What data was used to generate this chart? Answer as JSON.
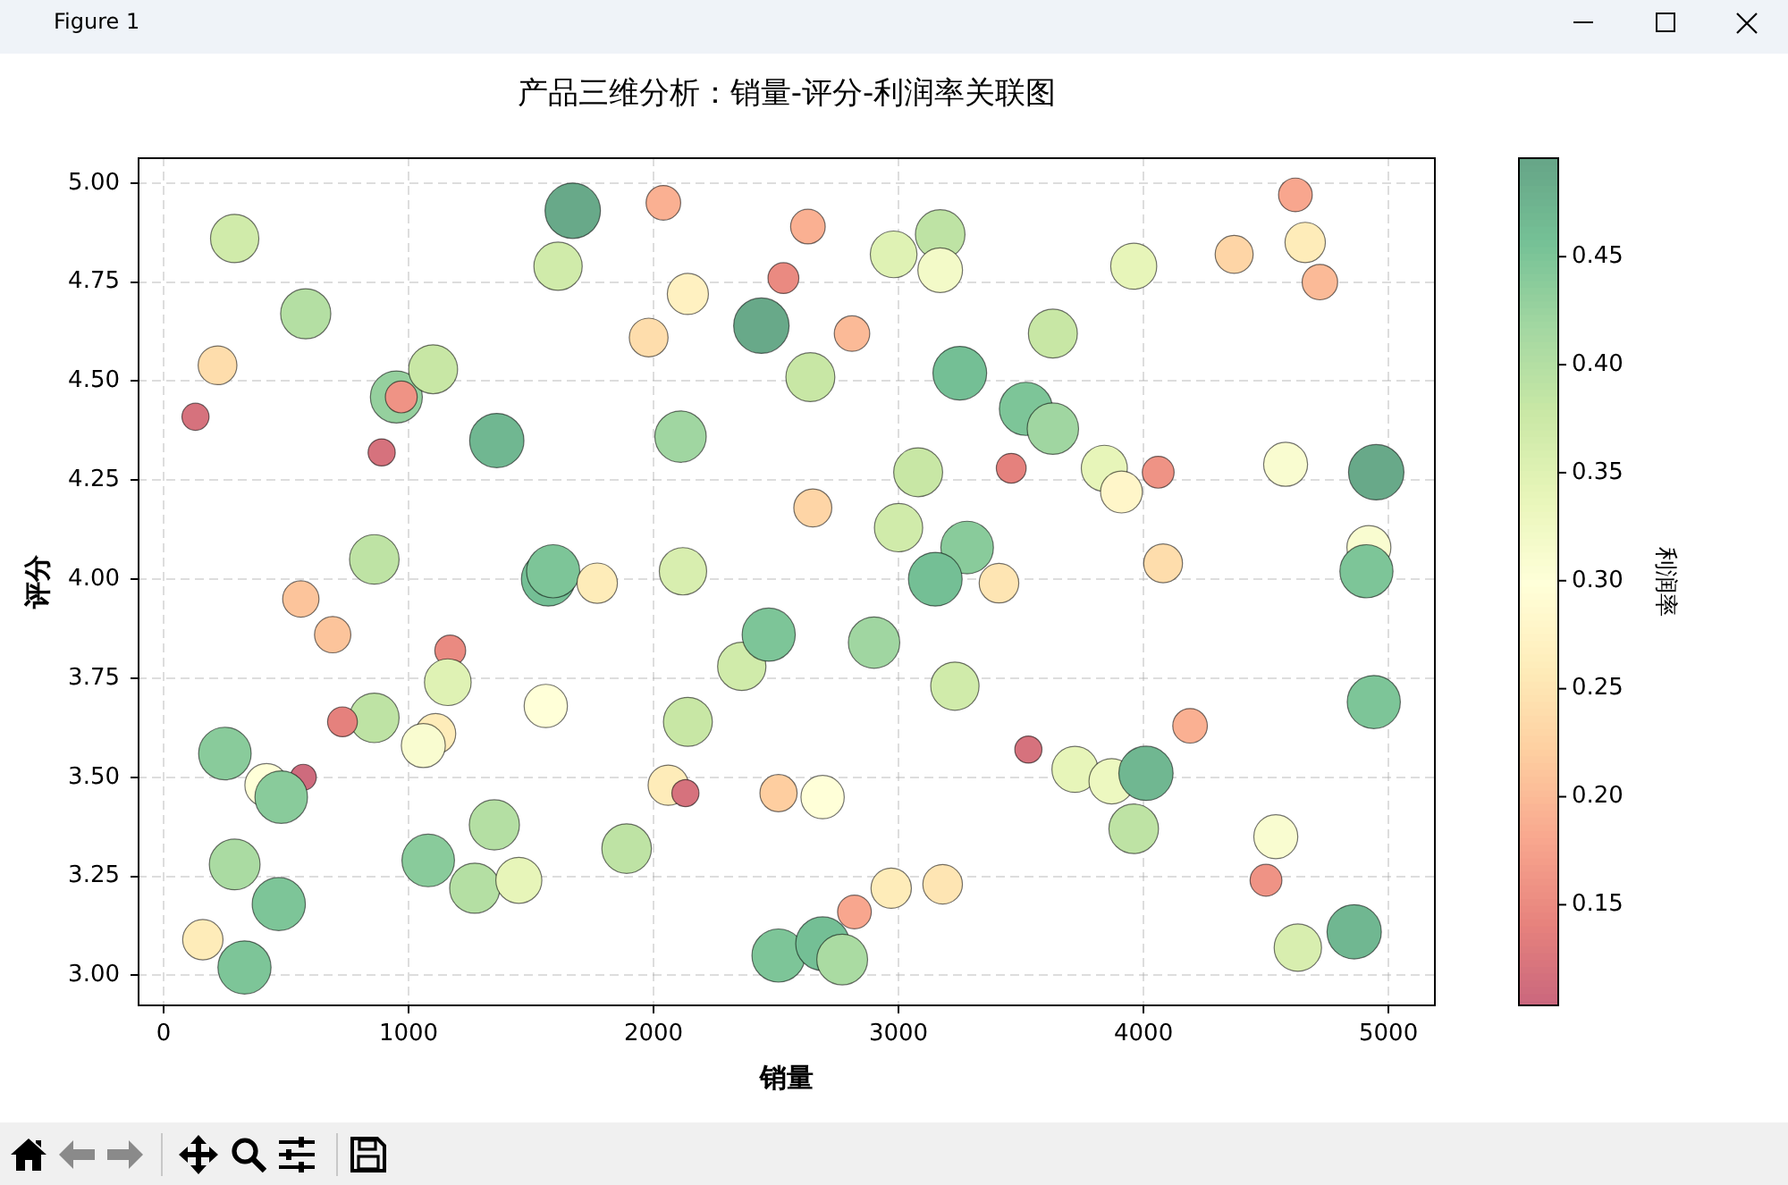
{
  "chart_data": {
    "type": "bubble",
    "title": "产品三维分析：销量-评分-利润率关联图",
    "xlabel": "销量",
    "ylabel": "评分",
    "clabel": "利润率",
    "annotations": [
      "Figure 1"
    ],
    "x": [
      290,
      580,
      220,
      130,
      950,
      970,
      1100,
      890,
      1360,
      1670,
      1610,
      2040,
      2140,
      1980,
      2440,
      2530,
      2110,
      860,
      1570,
      1590,
      1770,
      2120,
      560,
      2640,
      2630,
      2810,
      2980,
      3170,
      3170,
      3250,
      3630,
      3520,
      3630,
      3960,
      4370,
      4620,
      4660,
      4720,
      3080,
      3460,
      3840,
      3910,
      4060,
      4580,
      4950,
      2650,
      3000,
      3280,
      3150,
      3410,
      4080,
      4920,
      4910,
      690,
      1170,
      1160,
      1560,
      860,
      730,
      1110,
      1060,
      250,
      420,
      570,
      480,
      290,
      470,
      160,
      330,
      1350,
      1080,
      1270,
      1450,
      1890,
      2140,
      2060,
      2130,
      2360,
      2470,
      2510,
      2510,
      2900,
      3230,
      4940,
      4190,
      3530,
      3720,
      3870,
      4010,
      3960,
      2690,
      4540,
      4500,
      2970,
      3180,
      2820,
      2690,
      2770,
      4630,
      4860
    ],
    "values": [
      4.86,
      4.67,
      4.54,
      4.41,
      4.46,
      4.46,
      4.53,
      4.32,
      4.35,
      4.93,
      4.79,
      4.95,
      4.72,
      4.61,
      4.64,
      4.76,
      4.36,
      4.05,
      4.0,
      4.02,
      3.99,
      4.02,
      3.95,
      4.51,
      4.89,
      4.62,
      4.82,
      4.87,
      4.78,
      4.52,
      4.62,
      4.43,
      4.38,
      4.79,
      4.82,
      4.97,
      4.85,
      4.75,
      4.27,
      4.28,
      4.28,
      4.22,
      4.27,
      4.29,
      4.27,
      4.18,
      4.13,
      4.08,
      4.0,
      3.99,
      4.04,
      4.08,
      4.02,
      3.86,
      3.82,
      3.74,
      3.68,
      3.65,
      3.64,
      3.61,
      3.58,
      3.56,
      3.48,
      3.5,
      3.45,
      3.28,
      3.18,
      3.09,
      3.02,
      3.38,
      3.29,
      3.22,
      3.24,
      3.32,
      3.64,
      3.48,
      3.46,
      3.78,
      3.86,
      3.46,
      3.05,
      3.84,
      3.73,
      3.69,
      3.63,
      3.57,
      3.52,
      3.49,
      3.51,
      3.37,
      3.45,
      3.35,
      3.24,
      3.22,
      3.23,
      3.16,
      3.08,
      3.04,
      3.07,
      3.11
    ],
    "cvalues": [
      0.37,
      0.4,
      0.24,
      0.12,
      0.43,
      0.16,
      0.38,
      0.12,
      0.47,
      0.49,
      0.37,
      0.19,
      0.27,
      0.24,
      0.49,
      0.15,
      0.42,
      0.39,
      0.46,
      0.45,
      0.26,
      0.36,
      0.21,
      0.38,
      0.19,
      0.2,
      0.35,
      0.39,
      0.32,
      0.46,
      0.38,
      0.45,
      0.42,
      0.34,
      0.23,
      0.18,
      0.26,
      0.2,
      0.38,
      0.14,
      0.34,
      0.28,
      0.16,
      0.31,
      0.49,
      0.23,
      0.37,
      0.44,
      0.46,
      0.25,
      0.24,
      0.31,
      0.45,
      0.21,
      0.15,
      0.35,
      0.3,
      0.39,
      0.14,
      0.26,
      0.31,
      0.44,
      0.3,
      0.11,
      0.44,
      0.41,
      0.45,
      0.26,
      0.45,
      0.4,
      0.44,
      0.4,
      0.34,
      0.39,
      0.38,
      0.26,
      0.12,
      0.37,
      0.45,
      0.22,
      0.45,
      0.42,
      0.37,
      0.45,
      0.19,
      0.12,
      0.34,
      0.33,
      0.47,
      0.39,
      0.3,
      0.31,
      0.16,
      0.26,
      0.25,
      0.18,
      0.46,
      0.41,
      0.36,
      0.47
    ],
    "sizes": [
      0.76,
      0.82,
      0.49,
      0.24,
      0.88,
      0.33,
      0.78,
      0.24,
      0.96,
      1.0,
      0.76,
      0.39,
      0.55,
      0.49,
      1.0,
      0.31,
      0.86,
      0.8,
      0.94,
      0.92,
      0.53,
      0.73,
      0.43,
      0.78,
      0.39,
      0.41,
      0.71,
      0.8,
      0.65,
      0.94,
      0.78,
      0.92,
      0.86,
      0.69,
      0.47,
      0.37,
      0.53,
      0.41,
      0.78,
      0.29,
      0.69,
      0.57,
      0.33,
      0.63,
      1.0,
      0.47,
      0.76,
      0.9,
      0.94,
      0.51,
      0.49,
      0.63,
      0.92,
      0.43,
      0.31,
      0.71,
      0.61,
      0.8,
      0.29,
      0.53,
      0.63,
      0.9,
      0.61,
      0.22,
      0.9,
      0.84,
      0.92,
      0.53,
      0.92,
      0.82,
      0.9,
      0.82,
      0.69,
      0.8,
      0.78,
      0.53,
      0.24,
      0.76,
      0.92,
      0.45,
      0.92,
      0.86,
      0.76,
      0.92,
      0.39,
      0.24,
      0.69,
      0.67,
      0.96,
      0.8,
      0.61,
      0.63,
      0.33,
      0.53,
      0.51,
      0.37,
      0.94,
      0.84,
      0.73,
      0.96
    ],
    "xlim": [
      -106,
      5193
    ],
    "ylim": [
      2.922,
      5.065
    ],
    "xticks": [
      0,
      1000,
      2000,
      3000,
      4000,
      5000
    ],
    "yticks": [
      {
        "value": 3,
        "label": "3.00"
      },
      {
        "value": 3.25,
        "label": "3.25"
      },
      {
        "value": 3.5,
        "label": "3.50"
      },
      {
        "value": 3.75,
        "label": "3.75"
      },
      {
        "value": 4,
        "label": "4.00"
      },
      {
        "value": 4.25,
        "label": "4.25"
      },
      {
        "value": 4.5,
        "label": "4.50"
      },
      {
        "value": 4.75,
        "label": "4.75"
      },
      {
        "value": 5,
        "label": "5.00"
      }
    ],
    "clim": [
      0.103,
      0.496
    ],
    "cticks": [
      0.15,
      {
        "value": 0.2,
        "label": "0.20"
      },
      0.25,
      {
        "value": 0.3,
        "label": "0.30"
      },
      0.35,
      {
        "value": 0.4,
        "label": "0.40"
      },
      0.45
    ],
    "grid": true,
    "legend": false,
    "marker": "circle"
  }
}
